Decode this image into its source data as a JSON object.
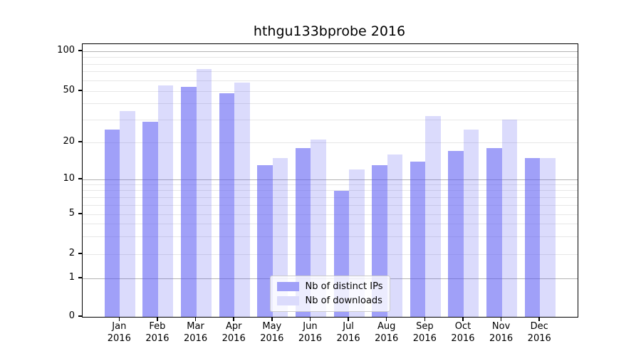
{
  "title": "hthgu133bprobe 2016",
  "chart_data": {
    "type": "bar",
    "title": "hthgu133bprobe 2016",
    "categories": [
      "Jan 2016",
      "Feb 2016",
      "Mar 2016",
      "Apr 2016",
      "May 2016",
      "Jun 2016",
      "Jul 2016",
      "Aug 2016",
      "Sep 2016",
      "Oct 2016",
      "Nov 2016",
      "Dec 2016"
    ],
    "series": [
      {
        "name": "Nb of distinct IPs",
        "values": [
          25,
          29,
          54,
          48,
          13,
          18,
          8,
          13,
          14,
          17,
          18,
          15
        ]
      },
      {
        "name": "Nb of downloads",
        "values": [
          35,
          55,
          73,
          58,
          15,
          21,
          12,
          16,
          32,
          25,
          30,
          15
        ]
      }
    ],
    "yscale": "log-like (linear 0-1, logarithmic above)",
    "yticks": [
      0,
      1,
      2,
      5,
      10,
      20,
      50,
      100
    ],
    "minor_grid_values": [
      2,
      3,
      4,
      5,
      6,
      7,
      8,
      9,
      20,
      30,
      40,
      50,
      60,
      70,
      80,
      90
    ],
    "major_grid_values": [
      1,
      10,
      100
    ],
    "ylim": [
      0,
      120
    ],
    "grid": "horizontal major+minor",
    "legend_position": "lower center"
  },
  "colors": {
    "bar_ips_fill": "rgba(88,88,242,0.57)",
    "bar_downloads_fill": "rgba(88,88,242,0.215)",
    "legend_swatch_ips": "#a0a0f8",
    "legend_swatch_downloads": "#dbdbfc",
    "major_grid": "#b3b3b3",
    "minor_grid": "#e7e7e7"
  }
}
